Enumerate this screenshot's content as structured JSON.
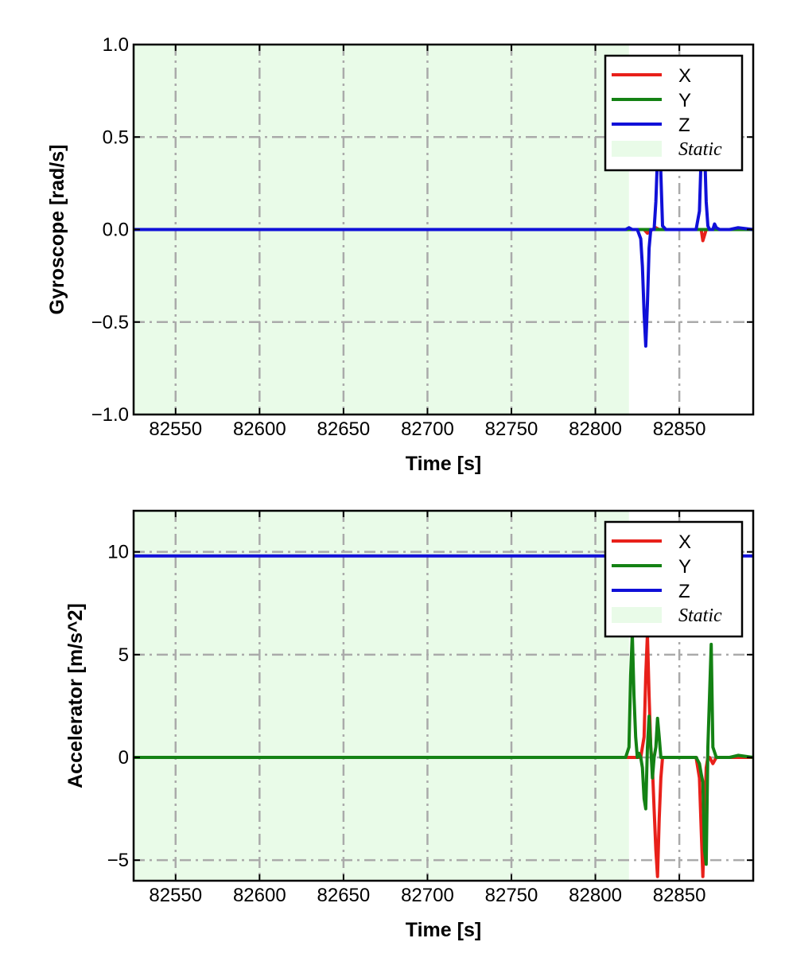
{
  "chart_data": [
    {
      "type": "line",
      "xlabel": "Time [s]",
      "ylabel": "Gyroscope [rad/s]",
      "xlim": [
        82525,
        82894
      ],
      "ylim": [
        -1.0,
        1.0
      ],
      "xticks": [
        82550,
        82600,
        82650,
        82700,
        82750,
        82800,
        82850
      ],
      "xtick_labels": [
        "82550",
        "82600",
        "82650",
        "82700",
        "82750",
        "82800",
        "82850"
      ],
      "yticks": [
        -1.0,
        -0.5,
        0.0,
        0.5,
        1.0
      ],
      "ytick_labels": [
        "−1.0",
        "−0.5",
        "0.0",
        "0.5",
        "1.0"
      ],
      "grid": true,
      "legend_position": "top-right",
      "static_region": {
        "label": "Static",
        "x": [
          82525,
          82820
        ],
        "color": "#e9fbe8"
      },
      "series": [
        {
          "name": "X",
          "color": "#e8201a",
          "x": [
            82525,
            82820,
            82826,
            82829,
            82831,
            82834,
            82836,
            82838,
            82841,
            82845,
            82860,
            82863,
            82864,
            82865,
            82866,
            82868,
            82870,
            82872,
            82875,
            82894
          ],
          "y": [
            0.0,
            0.0,
            0.0,
            0.0,
            -0.02,
            0.0,
            0.01,
            0.0,
            0.0,
            0.0,
            0.0,
            0.0,
            -0.06,
            -0.03,
            0.0,
            0.0,
            0.0,
            0.0,
            0.0,
            0.0
          ]
        },
        {
          "name": "Y",
          "color": "#148214",
          "x": [
            82525,
            82820,
            82826,
            82829,
            82831,
            82834,
            82836,
            82838,
            82841,
            82845,
            82860,
            82863,
            82864,
            82865,
            82866,
            82868,
            82870,
            82872,
            82875,
            82894
          ],
          "y": [
            0.0,
            0.0,
            0.0,
            0.0,
            0.0,
            0.0,
            0.0,
            0.0,
            0.0,
            0.0,
            0.0,
            0.0,
            0.0,
            0.0,
            0.0,
            0.0,
            0.0,
            0.0,
            0.0,
            0.0
          ]
        },
        {
          "name": "Z",
          "color": "#1010d8",
          "x": [
            82525,
            82818,
            82820,
            82822,
            82825,
            82827,
            82828,
            82829,
            82830,
            82831,
            82832,
            82833,
            82835,
            82836,
            82837,
            82838,
            82839,
            82840,
            82842,
            82860,
            82862,
            82863,
            82864,
            82865,
            82866,
            82867,
            82868,
            82870,
            82871,
            82872,
            82874,
            82880,
            82885,
            82894
          ],
          "y": [
            0.0,
            0.0,
            0.01,
            0.0,
            0.0,
            -0.05,
            -0.2,
            -0.45,
            -0.63,
            -0.4,
            -0.1,
            0.0,
            0.0,
            0.15,
            0.4,
            0.65,
            0.3,
            0.02,
            0.0,
            0.0,
            0.1,
            0.4,
            0.6,
            0.45,
            0.15,
            0.02,
            0.0,
            0.0,
            0.03,
            0.01,
            0.0,
            0.0,
            0.01,
            0.0
          ]
        }
      ]
    },
    {
      "type": "line",
      "xlabel": "Time [s]",
      "ylabel": "Accelerator [m/s^2]",
      "xlim": [
        82525,
        82894
      ],
      "ylim": [
        -6,
        12
      ],
      "xticks": [
        82550,
        82600,
        82650,
        82700,
        82750,
        82800,
        82850
      ],
      "xtick_labels": [
        "82550",
        "82600",
        "82650",
        "82700",
        "82750",
        "82800",
        "82850"
      ],
      "yticks": [
        -5,
        0,
        5,
        10
      ],
      "ytick_labels": [
        "−5",
        "0",
        "5",
        "10"
      ],
      "grid": true,
      "legend_position": "top-right",
      "static_region": {
        "label": "Static",
        "x": [
          82525,
          82820
        ],
        "color": "#e9fbe8"
      },
      "series": [
        {
          "name": "X",
          "color": "#e8201a",
          "x": [
            82525,
            82820,
            82825,
            82827,
            82829,
            82830,
            82831,
            82832,
            82833,
            82834,
            82835,
            82836,
            82837,
            82838,
            82839,
            82840,
            82842,
            82850,
            82860,
            82862,
            82863,
            82864,
            82865,
            82866,
            82867,
            82868,
            82870,
            82872,
            82880,
            82894
          ],
          "y": [
            0.0,
            0.0,
            0.0,
            0.0,
            1.0,
            4.0,
            6.0,
            3.0,
            0.5,
            -0.5,
            -2.5,
            -4.5,
            -5.8,
            -3.0,
            -1.0,
            0.0,
            0.0,
            0.0,
            0.0,
            -1.0,
            -3.5,
            -5.8,
            -3.0,
            -0.5,
            0.0,
            0.0,
            -0.3,
            0.0,
            0.0,
            0.0
          ]
        },
        {
          "name": "Y",
          "color": "#148214",
          "x": [
            82525,
            82818,
            82820,
            82821,
            82822,
            82823,
            82824,
            82825,
            82826,
            82827,
            82828,
            82829,
            82830,
            82831,
            82832,
            82833,
            82834,
            82835,
            82836,
            82837,
            82838,
            82839,
            82840,
            82845,
            82850,
            82860,
            82862,
            82863,
            82864,
            82865,
            82866,
            82867,
            82868,
            82869,
            82870,
            82872,
            82880,
            82885,
            82894
          ],
          "y": [
            0.0,
            0.0,
            0.5,
            4.0,
            6.0,
            3.0,
            1.0,
            0.0,
            0.2,
            0.0,
            -0.5,
            -2.0,
            -2.5,
            0.5,
            2.0,
            0.5,
            -1.0,
            0.0,
            0.5,
            1.9,
            1.0,
            0.0,
            0.0,
            0.0,
            0.0,
            0.0,
            -0.3,
            -0.8,
            -1.2,
            -4.5,
            -5.2,
            0.5,
            3.0,
            5.5,
            0.5,
            0.0,
            0.0,
            0.1,
            0.0
          ]
        },
        {
          "name": "Z",
          "color": "#1010d8",
          "x": [
            82525,
            82600,
            82700,
            82800,
            82894
          ],
          "y": [
            9.8,
            9.8,
            9.8,
            9.8,
            9.8
          ]
        }
      ]
    }
  ]
}
